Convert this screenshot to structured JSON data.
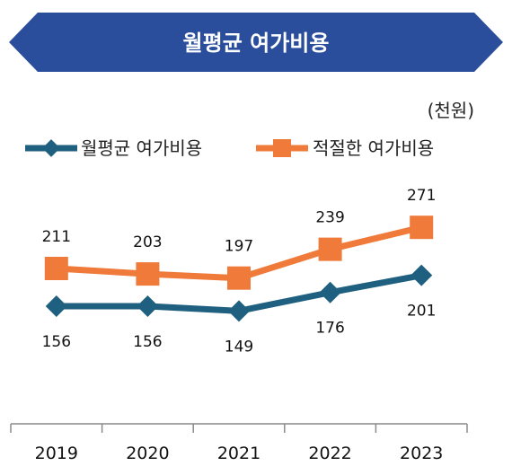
{
  "chart_data": {
    "type": "line",
    "title": "월평균 여가비용",
    "unit": "(천원)",
    "categories": [
      "2019",
      "2020",
      "2021",
      "2022",
      "2023"
    ],
    "series": [
      {
        "name": "월평균 여가비용",
        "values": [
          156,
          156,
          149,
          176,
          201
        ],
        "color": "#1f5f7f",
        "marker": "diamond",
        "label_position": "below"
      },
      {
        "name": "적절한 여가비용",
        "values": [
          211,
          203,
          197,
          239,
          271
        ],
        "color": "#ef7a3a",
        "marker": "square",
        "label_position": "above"
      }
    ],
    "xlabel": "",
    "ylabel": "",
    "ylim": [
      0,
      300
    ],
    "grid": false,
    "legend": "top-left",
    "banner_color": "#2b4e9c"
  }
}
